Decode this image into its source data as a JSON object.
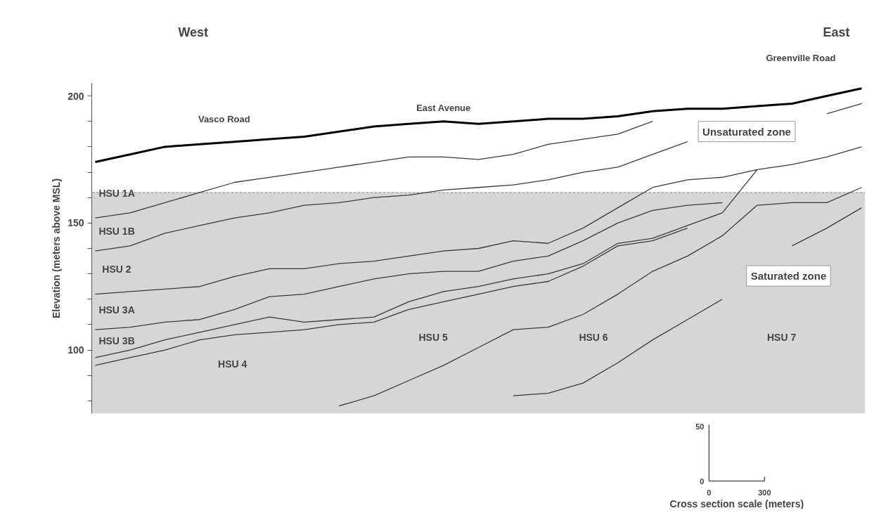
{
  "chart_data": {
    "type": "line",
    "ylabel": "Elevation (meters above MSL)",
    "categories": [
      null,
      null,
      null,
      null,
      null,
      null,
      null,
      null,
      null,
      null,
      null,
      null,
      null,
      null,
      null,
      null,
      null,
      null,
      null,
      null,
      null,
      null,
      null
    ],
    "ylim": [
      75,
      205
    ],
    "yticks": [
      {
        "value": 80,
        "label": null
      },
      {
        "value": 90,
        "label": null
      },
      100,
      {
        "value": 110,
        "label": null
      },
      {
        "value": 120,
        "label": null
      },
      {
        "value": 130,
        "label": null
      },
      {
        "value": 140,
        "label": null
      },
      150,
      {
        "value": 160,
        "label": null
      },
      {
        "value": 170,
        "label": null
      },
      {
        "value": 180,
        "label": null
      },
      {
        "value": 190,
        "label": null
      },
      200
    ],
    "series": [
      {
        "color": "#000000",
        "values": [
          174,
          177,
          180,
          181,
          182,
          183,
          184,
          186,
          188,
          189,
          190,
          189,
          190,
          191,
          191,
          192,
          194,
          195,
          195,
          196,
          197,
          200,
          203
        ]
      },
      {
        "color": "#3a3a3a",
        "values": [
          152,
          154,
          158,
          162,
          166,
          168,
          170,
          172,
          174,
          176,
          176,
          175,
          177,
          181,
          183,
          185,
          190,
          null,
          null,
          null,
          null,
          null,
          null
        ]
      },
      {
        "color": "#3a3a3a",
        "values": [
          139,
          141,
          146,
          149,
          152,
          154,
          157,
          158,
          160,
          161,
          163,
          164,
          165,
          167,
          170,
          172,
          177,
          182,
          null,
          null,
          null,
          193,
          197
        ]
      },
      {
        "color": "#3a3a3a",
        "values": [
          122,
          123,
          124,
          125,
          129,
          132,
          132,
          134,
          135,
          137,
          139,
          140,
          143,
          142,
          148,
          156,
          164,
          167,
          168,
          171,
          173,
          176,
          180
        ]
      },
      {
        "color": "#3a3a3a",
        "values": [
          108,
          109,
          111,
          112,
          116,
          121,
          122,
          125,
          128,
          130,
          131,
          131,
          135,
          137,
          143,
          150,
          155,
          157,
          158,
          null,
          null,
          null,
          null
        ]
      },
      {
        "color": "#3a3a3a",
        "values": [
          97,
          100,
          104,
          107,
          110,
          113,
          111,
          112,
          113,
          119,
          123,
          125,
          128,
          130,
          134,
          142,
          144,
          149,
          154,
          171,
          null,
          null,
          null
        ]
      },
      {
        "color": "#3a3a3a",
        "values": [
          94,
          97,
          100,
          104,
          106,
          107,
          108,
          110,
          111,
          116,
          119,
          122,
          125,
          127,
          133,
          141,
          143,
          148,
          null,
          null,
          null,
          null,
          null
        ]
      },
      {
        "color": "#3a3a3a",
        "values": [
          null,
          null,
          null,
          null,
          null,
          null,
          null,
          78,
          82,
          88,
          94,
          101,
          108,
          109,
          114,
          122,
          131,
          137,
          145,
          157,
          158,
          158,
          164
        ]
      },
      {
        "color": "#3a3a3a",
        "values": [
          null,
          null,
          null,
          null,
          null,
          null,
          null,
          null,
          null,
          null,
          null,
          null,
          82,
          83,
          87,
          95,
          104,
          112,
          120,
          null,
          141,
          148,
          156
        ]
      }
    ],
    "ref_lines": [
      {
        "axis": "y",
        "value": 162,
        "color": "#8a8a8a",
        "line_style": "dashed"
      }
    ],
    "bands": [
      {
        "axis": "y",
        "from": 75,
        "to": 162,
        "color": "#d6d6d6",
        "label": "Saturated zone"
      }
    ],
    "annotations": [
      "West",
      "East",
      "Greenville Road",
      "Vasco Road",
      "East Avenue",
      "Unsaturated zone",
      "HSU 1A",
      "HSU 1B",
      "HSU 2",
      "HSU 3A",
      "HSU 3B",
      "HSU 4",
      "HSU 5",
      "HSU 6",
      "HSU 7",
      "50",
      "0",
      "0",
      "300",
      "Cross section scale (meters)"
    ]
  }
}
